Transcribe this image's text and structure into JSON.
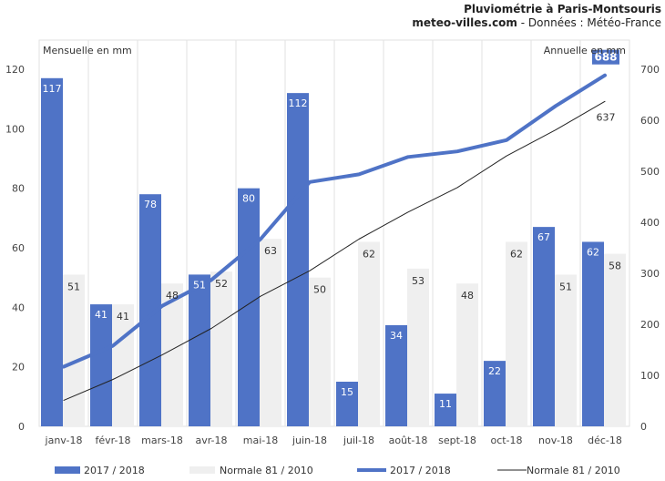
{
  "header": {
    "title": "Pluviométrie à Paris-Montsouris",
    "source_site": "meteo-villes.com",
    "source_rest": " - Données : Météo-France"
  },
  "chart_data": {
    "type": "bar",
    "categories": [
      "janv-18",
      "févr-18",
      "mars-18",
      "avr-18",
      "mai-18",
      "juin-18",
      "juil-18",
      "août-18",
      "sept-18",
      "oct-18",
      "nov-18",
      "déc-18"
    ],
    "ylabel": "Mensuelle en mm",
    "y2label": "Annuelle en mm",
    "ylim": [
      0,
      120
    ],
    "y2lim": [
      0,
      700
    ],
    "yticks": [
      0,
      20,
      40,
      60,
      80,
      100,
      120
    ],
    "y2ticks": [
      0,
      100,
      200,
      300,
      400,
      500,
      600,
      700
    ],
    "grid": "vertical",
    "legend_position": "bottom",
    "series": [
      {
        "name": "2017 / 2018",
        "kind": "bar",
        "axis": "left",
        "color": "#4f73c6",
        "values": [
          117,
          41,
          78,
          51,
          80,
          112,
          15,
          34,
          11,
          22,
          67,
          62
        ]
      },
      {
        "name": "Normale 81 / 2010",
        "kind": "bar",
        "axis": "left",
        "color": "#efefef",
        "values": [
          51,
          41,
          48,
          52,
          63,
          50,
          62,
          53,
          48,
          62,
          51,
          58
        ]
      },
      {
        "name": "2017 / 2018",
        "kind": "line",
        "axis": "right",
        "color": "#4f73c6",
        "values": [
          117,
          158,
          236,
          287,
          367,
          479,
          494,
          528,
          539,
          561,
          628,
          688
        ],
        "end_label": "688"
      },
      {
        "name": "Normale 81 / 2010",
        "kind": "line",
        "axis": "right",
        "color": "#222222",
        "values": [
          51,
          92,
          140,
          192,
          255,
          305,
          367,
          420,
          468,
          530,
          581,
          637
        ],
        "end_label": "637"
      }
    ]
  }
}
